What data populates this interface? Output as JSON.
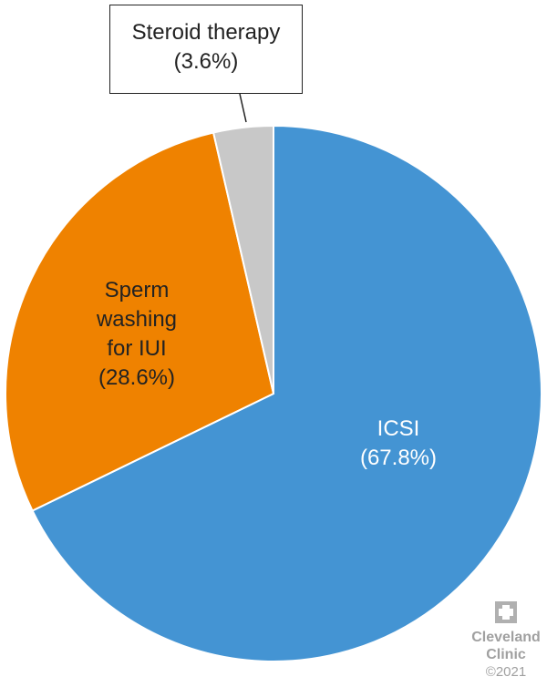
{
  "chart_data": {
    "type": "pie",
    "categories": [
      "ICSI",
      "Sperm washing for IUI",
      "Steroid therapy"
    ],
    "values": [
      67.8,
      28.6,
      3.6
    ],
    "value_labels": [
      "(67.8%)",
      "(28.6%)",
      "(3.6%)"
    ],
    "colors": [
      "#4494d3",
      "#ef8200",
      "#c8c8c8"
    ],
    "label_colors": [
      "#ffffff",
      "#222222",
      "#222222"
    ],
    "start_angle": 90,
    "direction": "clockwise"
  },
  "logo": {
    "name": "Cleveland Clinic",
    "copyright": "©2021"
  }
}
